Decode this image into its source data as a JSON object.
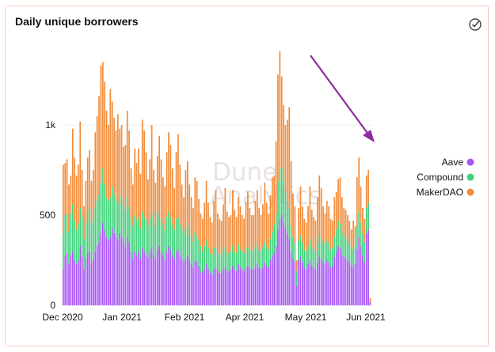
{
  "card": {
    "title": "Daily unique borrowers",
    "watermark_line1": "Dune",
    "watermark_line2": "Analytics"
  },
  "icons": {
    "check": "check-circle-icon",
    "annotation": "trend-arrow"
  },
  "colors": {
    "aave": "#a855f7",
    "compound": "#3fd07a",
    "makerdao": "#f28c3a",
    "arrow": "#8e2ca0",
    "grid": "#eeeeee",
    "border": "#f2c7bd"
  },
  "chart_data": {
    "type": "bar",
    "stacked": true,
    "title": "Daily unique borrowers",
    "xlabel": "",
    "ylabel": "",
    "ylim": [
      0,
      1400
    ],
    "yticks": [
      0,
      500,
      1000
    ],
    "ytick_labels": [
      "0",
      "500",
      "1k"
    ],
    "xtick_labels": [
      "Dec 2020",
      "Jan 2021",
      "Feb 2021",
      "Apr 2021",
      "May 2021",
      "Jun 2021"
    ],
    "x_range": [
      "2020-12-01",
      "2021-06-01"
    ],
    "legend_position": "right",
    "legend": [
      "Aave",
      "Compound",
      "MakerDAO"
    ],
    "series": [
      {
        "name": "Aave",
        "color": "#a855f7",
        "values": [
          200,
          270,
          290,
          230,
          280,
          300,
          250,
          230,
          250,
          330,
          270,
          200,
          260,
          290,
          300,
          240,
          260,
          300,
          330,
          350,
          400,
          460,
          420,
          380,
          360,
          380,
          430,
          400,
          380,
          360,
          400,
          380,
          350,
          320,
          380,
          350,
          300,
          260,
          300,
          280,
          300,
          260,
          320,
          300,
          280,
          260,
          300,
          320,
          280,
          260,
          310,
          330,
          300,
          280,
          250,
          300,
          330,
          310,
          280,
          260,
          300,
          310,
          280,
          260,
          240,
          260,
          280,
          250,
          230,
          210,
          250,
          240,
          220,
          190,
          180,
          200,
          230,
          200,
          180,
          170,
          200,
          210,
          190,
          180,
          180,
          200,
          210,
          190,
          190,
          200,
          220,
          200,
          190,
          230,
          210,
          200,
          190,
          210,
          220,
          210,
          200,
          200,
          210,
          230,
          210,
          200,
          210,
          240,
          220,
          210,
          250,
          270,
          290,
          330,
          420,
          480,
          500,
          460,
          430,
          400,
          370,
          300,
          260,
          240,
          110,
          250,
          270,
          240,
          210,
          200,
          230,
          250,
          220,
          210,
          200,
          240,
          270,
          260,
          240,
          230,
          250,
          240,
          210,
          220,
          270,
          300,
          330,
          320,
          280,
          270,
          260,
          250,
          240,
          220,
          210,
          230,
          310,
          380,
          330,
          280,
          240,
          400,
          420,
          20
        ]
      },
      {
        "name": "Compound",
        "color": "#3fd07a",
        "values": [
          200,
          230,
          210,
          180,
          230,
          260,
          220,
          190,
          200,
          210,
          220,
          170,
          200,
          230,
          240,
          210,
          220,
          240,
          250,
          260,
          280,
          300,
          250,
          220,
          220,
          220,
          230,
          220,
          200,
          200,
          210,
          210,
          200,
          210,
          220,
          200,
          190,
          180,
          200,
          190,
          190,
          170,
          200,
          190,
          190,
          180,
          190,
          200,
          190,
          180,
          190,
          190,
          180,
          170,
          170,
          190,
          190,
          180,
          170,
          160,
          180,
          180,
          170,
          160,
          160,
          170,
          160,
          150,
          150,
          140,
          160,
          150,
          140,
          140,
          120,
          130,
          130,
          120,
          110,
          110,
          120,
          110,
          100,
          100,
          100,
          110,
          110,
          100,
          100,
          100,
          110,
          100,
          100,
          110,
          100,
          100,
          100,
          110,
          100,
          100,
          100,
          100,
          110,
          110,
          100,
          100,
          110,
          110,
          110,
          100,
          120,
          140,
          160,
          180,
          270,
          280,
          260,
          230,
          200,
          180,
          170,
          140,
          120,
          110,
          80,
          110,
          120,
          110,
          100,
          100,
          100,
          120,
          100,
          100,
          100,
          110,
          120,
          120,
          110,
          110,
          110,
          110,
          100,
          100,
          110,
          120,
          140,
          130,
          120,
          120,
          110,
          110,
          100,
          100,
          100,
          100,
          120,
          140,
          130,
          120,
          110,
          140,
          150,
          0
        ]
      },
      {
        "name": "MakerDAO",
        "color": "#f28c3a",
        "values": [
          380,
          290,
          310,
          260,
          210,
          420,
          350,
          300,
          330,
          480,
          260,
          180,
          230,
          300,
          320,
          240,
          270,
          420,
          470,
          550,
          650,
          590,
          570,
          480,
          420,
          600,
          470,
          420,
          390,
          500,
          370,
          410,
          330,
          360,
          480,
          420,
          270,
          230,
          370,
          320,
          380,
          300,
          510,
          480,
          380,
          260,
          320,
          480,
          280,
          240,
          330,
          420,
          330,
          260,
          240,
          360,
          440,
          400,
          310,
          230,
          370,
          460,
          330,
          250,
          200,
          320,
          360,
          270,
          220,
          190,
          300,
          300,
          230,
          180,
          180,
          240,
          330,
          250,
          200,
          180,
          260,
          320,
          220,
          200,
          190,
          250,
          330,
          230,
          200,
          200,
          310,
          230,
          200,
          260,
          240,
          200,
          190,
          250,
          310,
          230,
          200,
          200,
          260,
          300,
          230,
          200,
          240,
          330,
          240,
          200,
          240,
          300,
          270,
          400,
          590,
          650,
          510,
          420,
          370,
          450,
          560,
          360,
          240,
          200,
          60,
          180,
          270,
          200,
          170,
          160,
          220,
          290,
          210,
          180,
          170,
          250,
          330,
          270,
          200,
          170,
          220,
          200,
          170,
          150,
          220,
          210,
          230,
          260,
          200,
          150,
          160,
          140,
          130,
          100,
          160,
          110,
          280,
          300,
          200,
          140,
          130,
          180,
          180,
          20
        ]
      }
    ]
  }
}
